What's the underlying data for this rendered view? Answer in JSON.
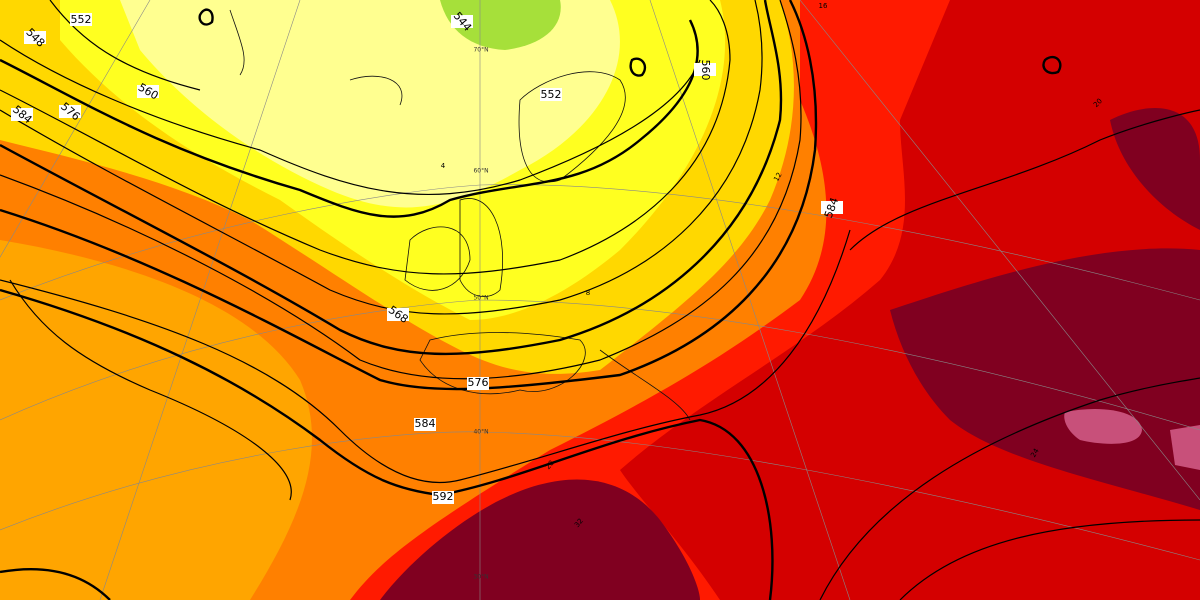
{
  "map": {
    "contour_labels": [
      "552",
      "548",
      "584",
      "576",
      "560",
      "544",
      "552",
      "560",
      "568",
      "576",
      "584",
      "584",
      "592"
    ],
    "temperature_labels": [
      "4",
      "8",
      "12",
      "16",
      "20",
      "24",
      "28",
      "32"
    ],
    "latitude_labels": [
      "70°N",
      "60°N",
      "50°N",
      "40°N",
      "30°N"
    ]
  }
}
